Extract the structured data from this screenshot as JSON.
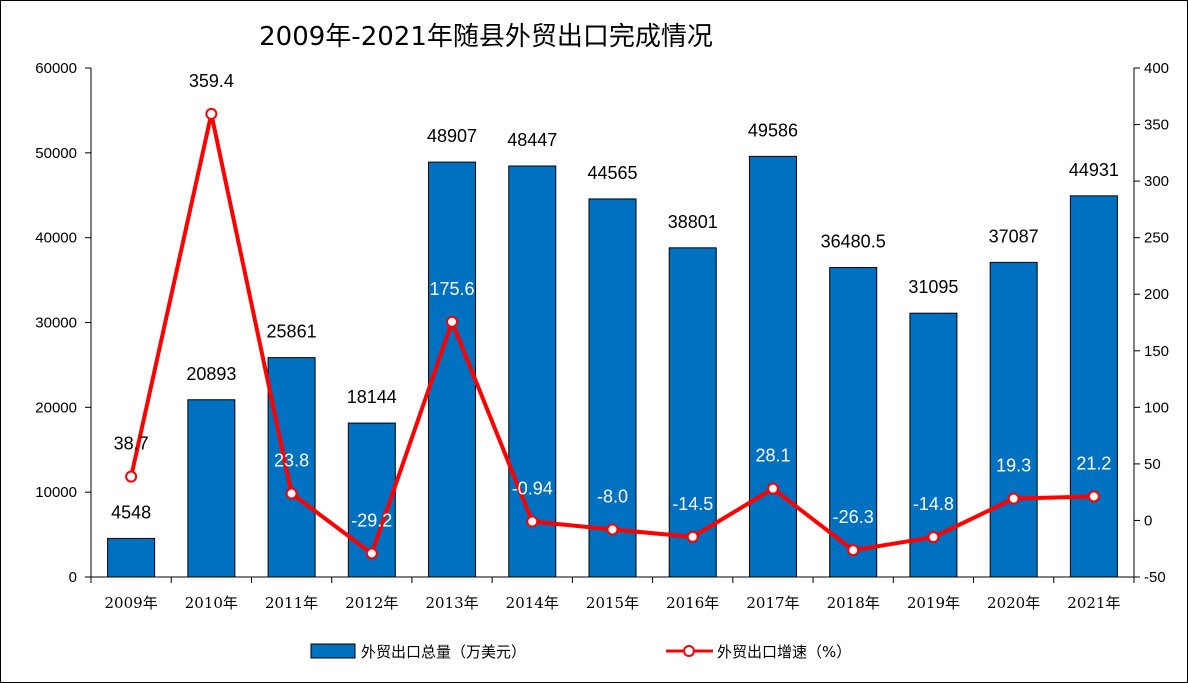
{
  "chart_data": {
    "type": "bar",
    "title": "2009年-2021年随县外贸出口完成情况",
    "categories": [
      "2009年",
      "2010年",
      "2011年",
      "2012年",
      "2013年",
      "2014年",
      "2015年",
      "2016年",
      "2017年",
      "2018年",
      "2019年",
      "2020年",
      "2021年"
    ],
    "series": [
      {
        "name": "外贸出口总量（万美元）",
        "type": "bar",
        "axis": "left",
        "values": [
          4548,
          20893,
          25861,
          18144,
          48907,
          48447,
          44565,
          38801,
          49586,
          36480.5,
          31095,
          37087,
          44931
        ],
        "labels": [
          "4548",
          "20893",
          "25861",
          "18144",
          "48907",
          "48447",
          "44565",
          "38801",
          "49586",
          "36480.5",
          "31095",
          "37087",
          "44931"
        ]
      },
      {
        "name": "外贸出口增速（%）",
        "type": "line",
        "axis": "right",
        "values": [
          38.7,
          359.4,
          23.8,
          -29.2,
          175.6,
          -0.94,
          -8.0,
          -14.5,
          28.1,
          -26.3,
          -14.8,
          19.3,
          21.2
        ],
        "labels": [
          "38.7",
          "359.4",
          "23.8",
          "-29.2",
          "175.6",
          "-0.94",
          "-8.0",
          "-14.5",
          "28.1",
          "-26.3",
          "-14.8",
          "19.3",
          "21.2"
        ]
      }
    ],
    "y_left": {
      "min": 0,
      "max": 60000,
      "ticks": [
        "0",
        "10000",
        "20000",
        "30000",
        "40000",
        "50000",
        "60000"
      ]
    },
    "y_right": {
      "min": -50,
      "max": 400,
      "ticks": [
        "-50",
        "0",
        "50",
        "100",
        "150",
        "200",
        "250",
        "300",
        "350",
        "400"
      ]
    },
    "grid": false,
    "legend_position": "bottom",
    "colors": {
      "bar": "#0070c0",
      "bar_border": "#000000",
      "line": "#ff0000",
      "marker_fill": "#ffffff"
    }
  }
}
